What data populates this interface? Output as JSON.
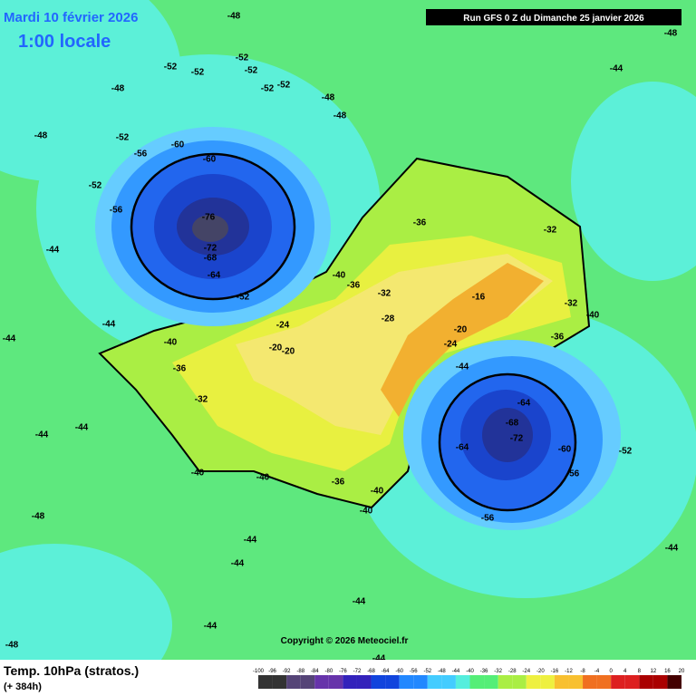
{
  "header": {
    "date": "Mardi 10 février 2026",
    "time": "1:00 locale",
    "run": "Run GFS 0 Z du Dimanche 25 janvier 2026"
  },
  "map": {
    "copyright": "Copyright © 2026 Meteociel.fr",
    "contour_labels": [
      -48,
      -52,
      -52,
      -52,
      -52,
      -52,
      -52,
      -48,
      -48,
      -48,
      -52,
      -56,
      -60,
      -60,
      -76,
      -72,
      -68,
      -64,
      -56,
      -52,
      -48,
      -44,
      -44,
      -52,
      -44,
      -40,
      -36,
      -32,
      -20,
      -20,
      -24,
      -28,
      -32,
      -36,
      -40,
      -36,
      -32,
      -16,
      -20,
      -24,
      -32,
      -36,
      -40,
      -44,
      -64,
      -68,
      -72,
      -64,
      -60,
      -56,
      -56,
      -52,
      -44,
      -48,
      -44,
      -40,
      -40,
      -36,
      -40,
      -40,
      -44,
      -44,
      -44,
      -48,
      -44,
      -44,
      -48,
      -44,
      -44
    ]
  },
  "footer": {
    "title": "Temp. 10hPa (stratos.)",
    "lead": "(+ 384h)"
  },
  "legend": {
    "ticks": [
      -100,
      -96,
      -92,
      -88,
      -84,
      -80,
      -76,
      -72,
      -68,
      -64,
      -60,
      -56,
      -52,
      -48,
      -44,
      -40,
      -36,
      -32,
      -28,
      -24,
      -20,
      -16,
      -12,
      -8,
      -4,
      0,
      4,
      8,
      12,
      16,
      20
    ]
  }
}
